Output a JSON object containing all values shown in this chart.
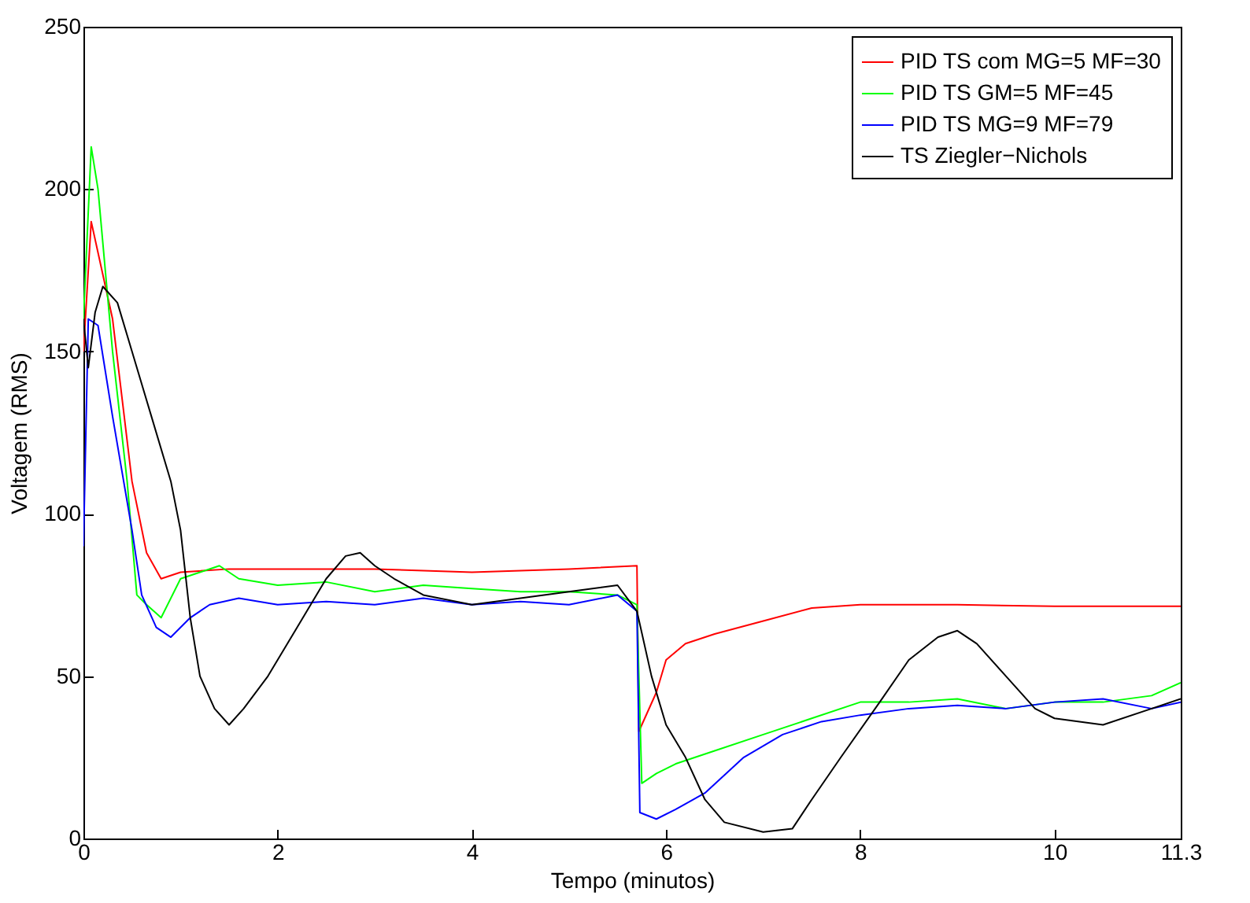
{
  "chart_data": {
    "type": "line",
    "xlabel": "Tempo (minutos)",
    "ylabel": "Voltagem (RMS)",
    "xlim": [
      0,
      11.3
    ],
    "xticks": [
      0,
      2,
      4,
      6,
      8,
      10,
      11.3
    ],
    "ylim": [
      0,
      250
    ],
    "yticks": [
      0,
      50,
      100,
      150,
      200,
      250
    ],
    "grid": false,
    "legend": "top right",
    "series": [
      {
        "name": "PID TS com MG=5 MF=30",
        "color": "#ff0000",
        "x": [
          0,
          0.08,
          0.3,
          0.5,
          0.65,
          0.8,
          1.0,
          1.5,
          2,
          3,
          4,
          5,
          5.7,
          5.72,
          5.9,
          6.0,
          6.2,
          6.5,
          7,
          7.5,
          8,
          9,
          10,
          11.3
        ],
        "values": [
          150,
          190,
          160,
          110,
          88,
          80,
          82,
          83,
          83,
          83,
          82,
          83,
          84,
          33,
          45,
          55,
          60,
          63,
          67,
          71,
          72,
          72,
          71.5,
          71.5
        ]
      },
      {
        "name": "PID TS GM=5 MF=45",
        "color": "#00ff00",
        "x": [
          0,
          0.08,
          0.15,
          0.3,
          0.45,
          0.55,
          0.65,
          0.8,
          1.0,
          1.2,
          1.4,
          1.6,
          2,
          2.5,
          3,
          3.5,
          4,
          4.5,
          5,
          5.5,
          5.7,
          5.75,
          5.9,
          6.1,
          6.5,
          7,
          7.5,
          8,
          8.5,
          9,
          9.5,
          10,
          10.5,
          11,
          11.3
        ],
        "values": [
          160,
          213,
          200,
          150,
          110,
          75,
          72,
          68,
          80,
          82,
          84,
          80,
          78,
          79,
          76,
          78,
          77,
          76,
          76,
          75,
          72,
          17,
          20,
          23,
          27,
          32,
          37,
          42,
          42,
          43,
          40,
          42,
          42,
          44,
          48
        ]
      },
      {
        "name": "PID TS MG=9 MF=79",
        "color": "#0000ff",
        "x": [
          0,
          0.05,
          0.15,
          0.3,
          0.5,
          0.6,
          0.75,
          0.9,
          1.1,
          1.3,
          1.6,
          2,
          2.5,
          3,
          3.5,
          4,
          4.5,
          5,
          5.5,
          5.7,
          5.73,
          5.9,
          6.1,
          6.4,
          6.8,
          7.2,
          7.6,
          8,
          8.5,
          9,
          9.5,
          10,
          10.5,
          11,
          11.3
        ],
        "values": [
          90,
          160,
          158,
          130,
          95,
          75,
          65,
          62,
          68,
          72,
          74,
          72,
          73,
          72,
          74,
          72,
          73,
          72,
          75,
          70,
          8,
          6,
          9,
          14,
          25,
          32,
          36,
          38,
          40,
          41,
          40,
          42,
          43,
          40,
          42
        ]
      },
      {
        "name": "TS Ziegler−Nichols",
        "color": "#000000",
        "x": [
          0,
          0.05,
          0.12,
          0.2,
          0.35,
          0.5,
          0.7,
          0.9,
          1.0,
          1.1,
          1.2,
          1.35,
          1.5,
          1.65,
          1.9,
          2.2,
          2.5,
          2.7,
          2.85,
          3.0,
          3.2,
          3.5,
          4,
          4.5,
          5,
          5.5,
          5.7,
          5.85,
          6.0,
          6.2,
          6.4,
          6.6,
          7,
          7.3,
          7.5,
          7.8,
          8.2,
          8.5,
          8.8,
          9.0,
          9.2,
          9.5,
          9.8,
          10,
          10.5,
          11,
          11.3
        ],
        "values": [
          160,
          145,
          162,
          170,
          165,
          150,
          130,
          110,
          95,
          68,
          50,
          40,
          35,
          40,
          50,
          65,
          80,
          87,
          88,
          84,
          80,
          75,
          72,
          74,
          76,
          78,
          70,
          50,
          35,
          25,
          12,
          5,
          2,
          3,
          12,
          25,
          42,
          55,
          62,
          64,
          60,
          50,
          40,
          37,
          35,
          40,
          43
        ]
      }
    ]
  }
}
